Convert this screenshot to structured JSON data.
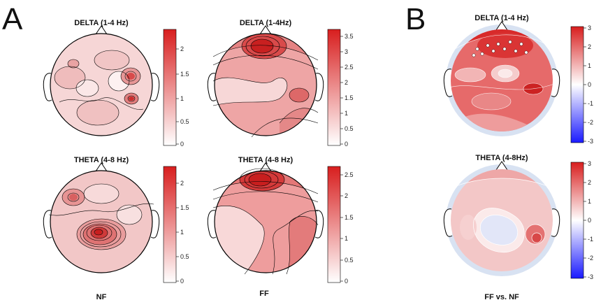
{
  "panels": {
    "a_letter": "A",
    "b_letter": "B"
  },
  "maps": {
    "nf_delta": {
      "title": "DELTA (1-4 Hz)",
      "ticks": [
        "2",
        "1.5",
        "1",
        "0.5",
        "0"
      ]
    },
    "ff_delta": {
      "title": "DELTA (1-4Hz)",
      "ticks": [
        "3.5",
        "3",
        "2.5",
        "2",
        "1.5",
        "1",
        "0.5",
        "0"
      ]
    },
    "diff_delta": {
      "title": "DELTA (1-4 Hz)",
      "ticks": [
        "3",
        "2",
        "1",
        "0",
        "-1",
        "-2",
        "-3"
      ]
    },
    "nf_theta": {
      "title": "THETA (4-8 Hz)",
      "ticks": [
        "2",
        "1.5",
        "1",
        "0.5",
        "0"
      ]
    },
    "ff_theta": {
      "title": "THETA (4-8 Hz)",
      "ticks": [
        "2.5",
        "2",
        "1.5",
        "1",
        "0.5",
        "0"
      ]
    },
    "diff_theta": {
      "title": "THETA (4-8Hz)",
      "ticks": [
        "3",
        "2",
        "1",
        "0",
        "-1",
        "-2",
        "-3"
      ]
    }
  },
  "labels": {
    "nf": "NF",
    "ff": "FF",
    "diff": "FF vs. NF"
  },
  "colors": {
    "seq_low": "#ffffff",
    "seq_high": "#d81e1e",
    "div_low": "#1a1aff",
    "div_mid": "#ffffff",
    "div_high": "#d81e1e",
    "contour": "#000000"
  }
}
